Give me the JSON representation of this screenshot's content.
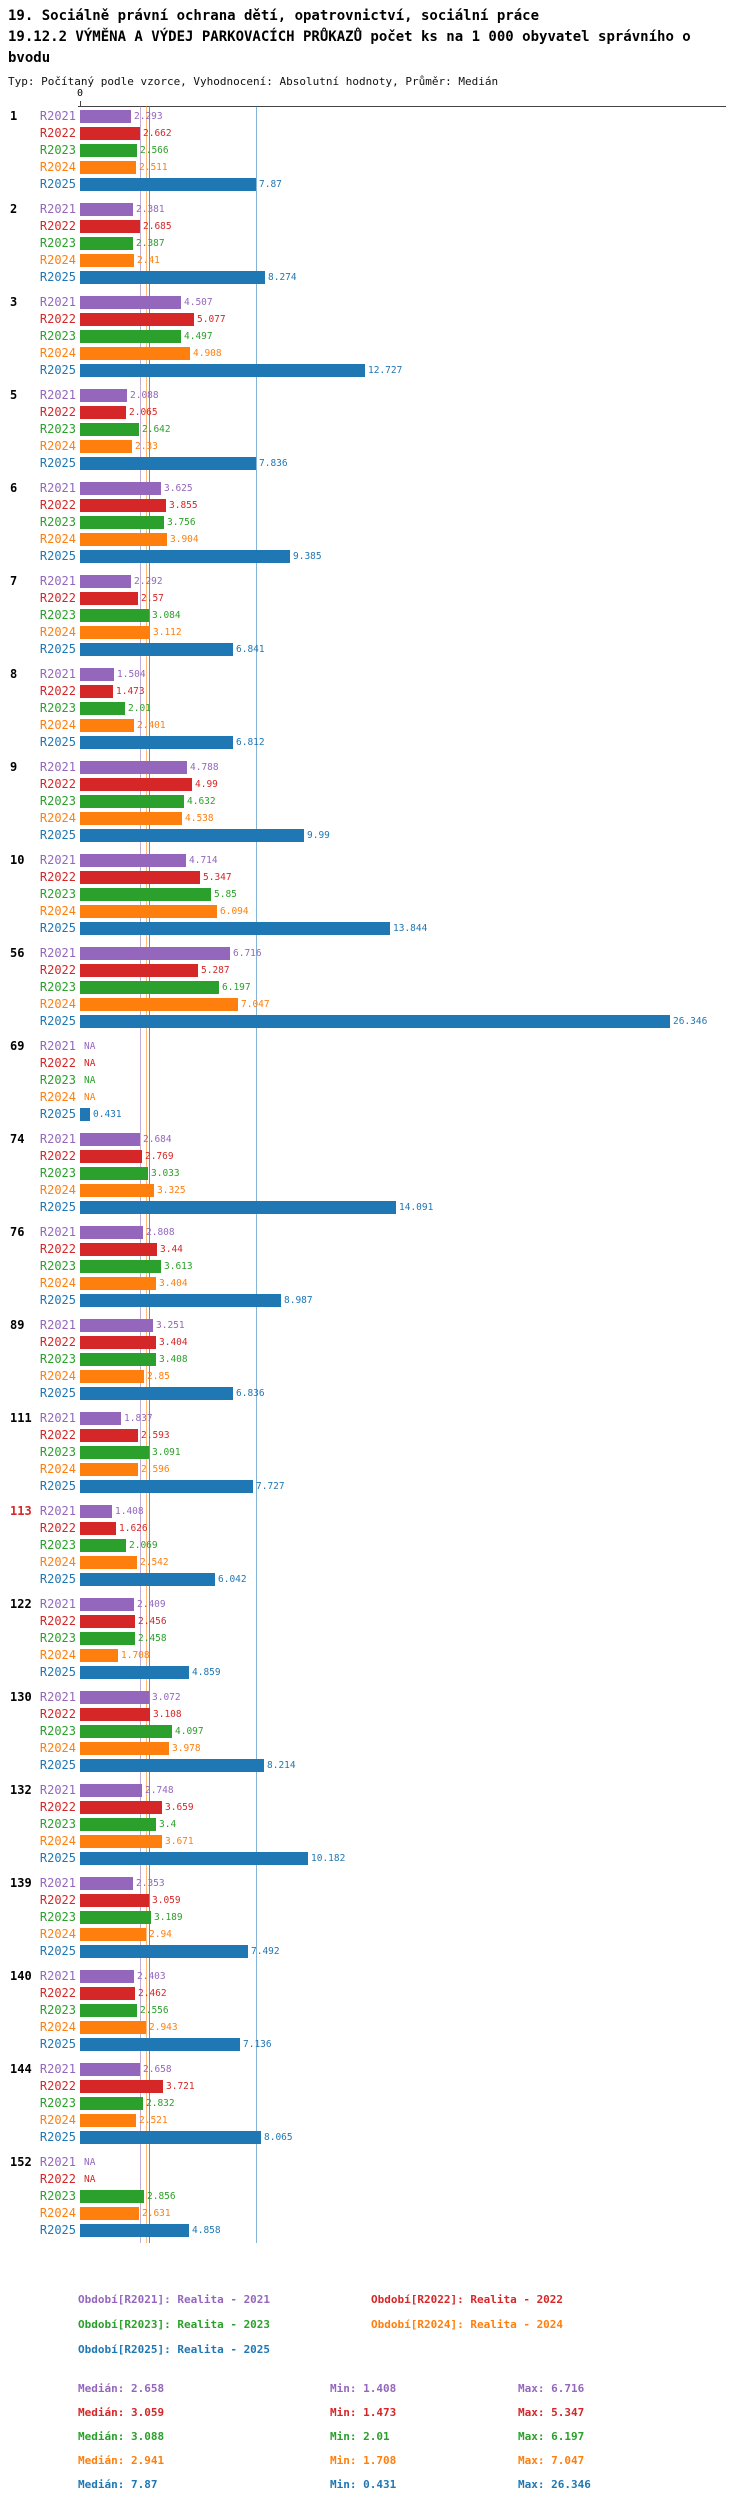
{
  "page": {
    "title_line1": "19. Sociálně právní ochrana dětí, opatrovnictví, sociální práce",
    "title_line2": "19.12.2 VÝMĚNA A VÝDEJ PARKOVACÍCH PRŮKAZŮ počet ks na 1 000 obyvatel správního obvodu",
    "subtitle": "Typ: Počítaný podle vzorce, Vyhodnocení: Absolutní hodnoty, Průměr: Medián"
  },
  "chart_data": {
    "type": "bar",
    "orientation": "horizontal",
    "x_axis": {
      "zero_label": "0",
      "min": 0,
      "max": 27
    },
    "na_label": "NA",
    "highlight_color": "#d62728",
    "stat_labels": {
      "median": "Medián",
      "min": "Min",
      "max": "Max"
    },
    "series": [
      {
        "key": "R2021",
        "color": "#9467bd",
        "legend": "Období[R2021]: Realita - 2021",
        "median": 2.658,
        "min": 1.408,
        "max": 6.716
      },
      {
        "key": "R2022",
        "color": "#d62728",
        "legend": "Období[R2022]: Realita - 2022",
        "median": 3.059,
        "min": 1.473,
        "max": 5.347
      },
      {
        "key": "R2023",
        "color": "#2ca02c",
        "legend": "Období[R2023]: Realita - 2023",
        "median": 3.088,
        "min": 2.01,
        "max": 6.197
      },
      {
        "key": "R2024",
        "color": "#ff7f0e",
        "legend": "Období[R2024]: Realita - 2024",
        "median": 2.941,
        "min": 1.708,
        "max": 7.047
      },
      {
        "key": "R2025",
        "color": "#1f77b4",
        "legend": "Období[R2025]: Realita - 2025",
        "median": 7.87,
        "min": 0.431,
        "max": 26.346
      }
    ],
    "groups": [
      {
        "id": "1",
        "highlight": false,
        "values": [
          2.293,
          2.662,
          2.566,
          2.511,
          7.87
        ]
      },
      {
        "id": "2",
        "highlight": false,
        "values": [
          2.381,
          2.685,
          2.387,
          2.41,
          8.274
        ]
      },
      {
        "id": "3",
        "highlight": false,
        "values": [
          4.507,
          5.077,
          4.497,
          4.908,
          12.727
        ]
      },
      {
        "id": "5",
        "highlight": false,
        "values": [
          2.088,
          2.065,
          2.642,
          2.33,
          7.836
        ]
      },
      {
        "id": "6",
        "highlight": false,
        "values": [
          3.625,
          3.855,
          3.756,
          3.904,
          9.385
        ]
      },
      {
        "id": "7",
        "highlight": false,
        "values": [
          2.292,
          2.57,
          3.084,
          3.112,
          6.841
        ]
      },
      {
        "id": "8",
        "highlight": false,
        "values": [
          1.504,
          1.473,
          2.01,
          2.401,
          6.812
        ]
      },
      {
        "id": "9",
        "highlight": false,
        "values": [
          4.788,
          4.99,
          4.632,
          4.538,
          9.99
        ]
      },
      {
        "id": "10",
        "highlight": false,
        "values": [
          4.714,
          5.347,
          5.85,
          6.094,
          13.844
        ]
      },
      {
        "id": "56",
        "highlight": false,
        "values": [
          6.716,
          5.287,
          6.197,
          7.047,
          26.346
        ]
      },
      {
        "id": "69",
        "highlight": false,
        "values": [
          null,
          null,
          null,
          null,
          0.431
        ]
      },
      {
        "id": "74",
        "highlight": false,
        "values": [
          2.684,
          2.769,
          3.033,
          3.325,
          14.091
        ]
      },
      {
        "id": "76",
        "highlight": false,
        "values": [
          2.808,
          3.44,
          3.613,
          3.404,
          8.987
        ]
      },
      {
        "id": "89",
        "highlight": false,
        "values": [
          3.251,
          3.404,
          3.408,
          2.85,
          6.836
        ]
      },
      {
        "id": "111",
        "highlight": false,
        "values": [
          1.837,
          2.593,
          3.091,
          2.596,
          7.727
        ]
      },
      {
        "id": "113",
        "highlight": true,
        "values": [
          1.408,
          1.626,
          2.069,
          2.542,
          6.042
        ]
      },
      {
        "id": "122",
        "highlight": false,
        "values": [
          2.409,
          2.456,
          2.458,
          1.708,
          4.859
        ]
      },
      {
        "id": "130",
        "highlight": false,
        "values": [
          3.072,
          3.108,
          4.097,
          3.978,
          8.214
        ]
      },
      {
        "id": "132",
        "highlight": false,
        "values": [
          2.748,
          3.659,
          3.4,
          3.671,
          10.182
        ]
      },
      {
        "id": "139",
        "highlight": false,
        "values": [
          2.353,
          3.059,
          3.189,
          2.94,
          7.492
        ]
      },
      {
        "id": "140",
        "highlight": false,
        "values": [
          2.403,
          2.462,
          2.556,
          2.943,
          7.136
        ]
      },
      {
        "id": "144",
        "highlight": false,
        "values": [
          2.658,
          3.721,
          2.832,
          2.521,
          8.065
        ]
      },
      {
        "id": "152",
        "highlight": false,
        "values": [
          null,
          null,
          2.856,
          2.631,
          4.858
        ]
      }
    ]
  }
}
